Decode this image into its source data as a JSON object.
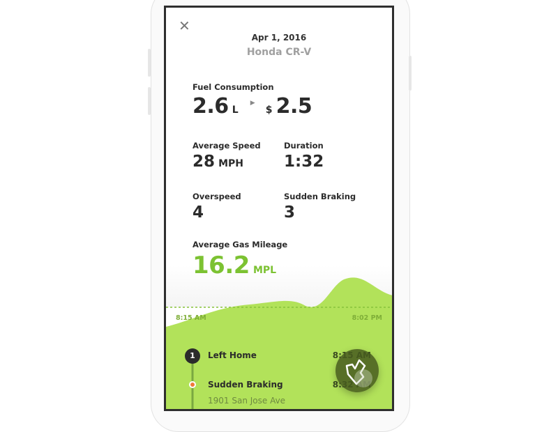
{
  "header": {
    "close_icon": "close-icon",
    "date": "Apr 1, 2016",
    "vehicle": "Honda CR-V"
  },
  "fuel": {
    "label": "Fuel Consumption",
    "liters": "2.6",
    "liters_unit": "L",
    "arrow_icon": "triangle-right-icon",
    "currency": "$",
    "cost": "2.5"
  },
  "stats": [
    {
      "label": "Average Speed",
      "value": "28",
      "unit": "MPH"
    },
    {
      "label": "Duration",
      "value": "1:32",
      "unit": ""
    },
    {
      "label": "Overspeed",
      "value": "4",
      "unit": ""
    },
    {
      "label": "Sudden Braking",
      "value": "3",
      "unit": ""
    }
  ],
  "mileage": {
    "label": "Average Gas Mileage",
    "value": "16.2",
    "unit": "MPL"
  },
  "timeline": {
    "start": "8:15 AM",
    "end": "8:02 PM"
  },
  "events": [
    {
      "marker": "1",
      "title": "Left Home",
      "time": "8:15 AM"
    },
    {
      "title": "Sudden Braking",
      "time": "8:32 AM",
      "address": "1901 San Jose Ave"
    }
  ],
  "colors": {
    "accent": "#7cc232",
    "fill": "#b2e25a",
    "warning": "#f07a3a"
  }
}
